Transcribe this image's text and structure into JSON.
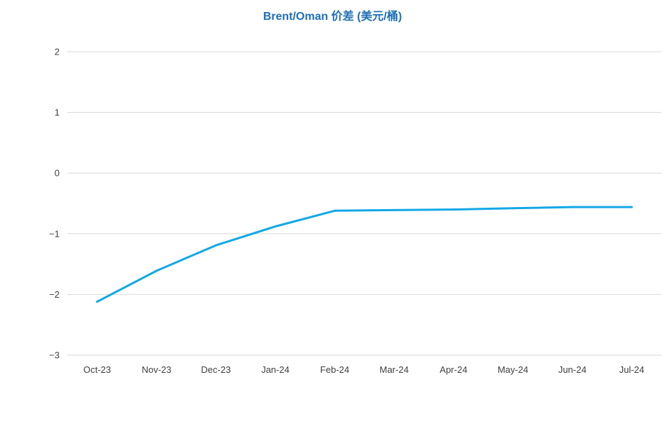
{
  "chart_data": {
    "type": "line",
    "title": "Brent/Oman 价差 (美元/桶)",
    "xlabel": "",
    "ylabel": "",
    "categories": [
      "Oct-23",
      "Nov-23",
      "Dec-23",
      "Jan-24",
      "Feb-24",
      "Mar-24",
      "Apr-24",
      "May-24",
      "Jun-24",
      "Jul-24"
    ],
    "series": [
      {
        "values": [
          -2.12,
          -1.61,
          -1.19,
          -0.88,
          -0.62,
          -0.61,
          -0.6,
          -0.58,
          -0.56,
          -0.56
        ]
      }
    ],
    "ylim": [
      -3,
      2
    ],
    "yticks": [
      2,
      1,
      0,
      -1,
      -2,
      -3
    ],
    "grid": true,
    "legend": "none",
    "colors": {
      "line": "#13a8e6",
      "title": "#1f6fb5",
      "grid": "#d9d9d9",
      "tick_text": "#404040"
    }
  }
}
